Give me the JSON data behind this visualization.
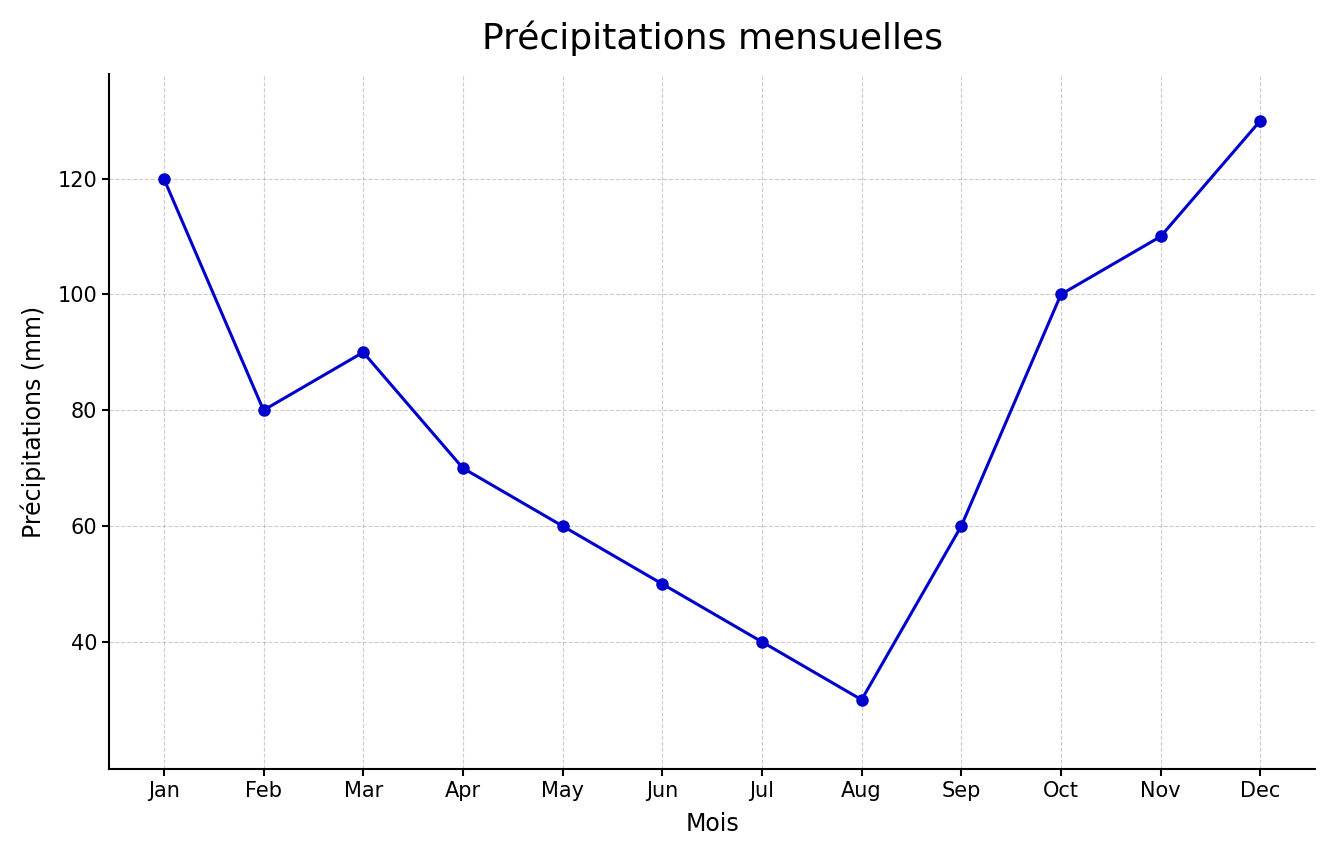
{
  "title": "Précipitations mensuelles",
  "xlabel": "Mois",
  "ylabel": "Précipitations (mm)",
  "months": [
    "Jan",
    "Feb",
    "Mar",
    "Apr",
    "May",
    "Jun",
    "Jul",
    "Aug",
    "Sep",
    "Oct",
    "Nov",
    "Dec"
  ],
  "values": [
    120,
    80,
    90,
    70,
    60,
    50,
    40,
    30,
    60,
    100,
    110,
    130
  ],
  "line_color": "#0000cc",
  "marker": "o",
  "marker_color": "#0000cc",
  "marker_size": 8,
  "line_width": 2.2,
  "ylim_min": 18,
  "ylim_max": 138,
  "yticks": [
    40,
    60,
    80,
    100,
    120
  ],
  "title_fontsize": 26,
  "axis_label_fontsize": 17,
  "tick_fontsize": 15,
  "background_color": "#ffffff",
  "grid_color": "#aaaaaa",
  "grid_linestyle": "--",
  "grid_alpha": 0.6
}
